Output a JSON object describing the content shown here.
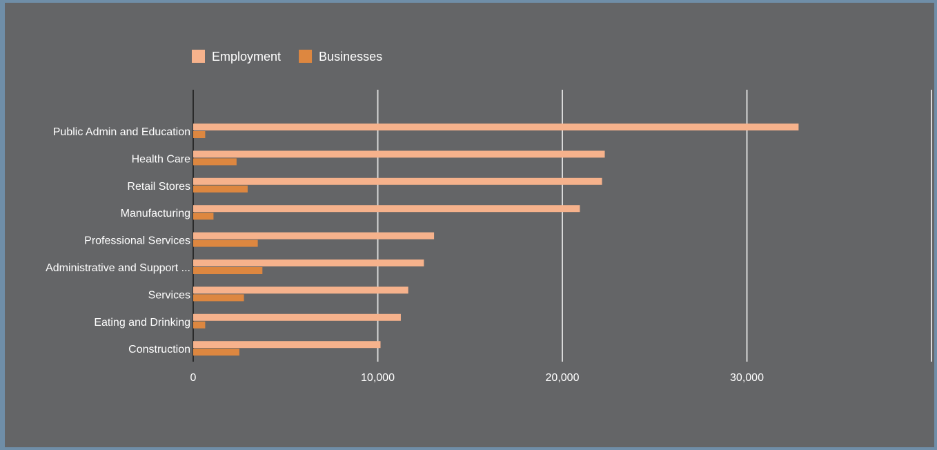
{
  "colors": {
    "background": "#646567",
    "frame": "#6f8ea8",
    "employment": "#f6b28c",
    "businesses": "#dd8740",
    "gridline": "#d9d9d9",
    "baseline": "#2a2a2a",
    "text": "#ffffff"
  },
  "chart_data": {
    "type": "bar",
    "orientation": "horizontal",
    "categories": [
      "Public Admin and Education",
      "Health Care",
      "Retail Stores",
      "Manufacturing",
      "Professional Services",
      "Administrative and Support ...",
      "Services",
      "Eating and Drinking",
      "Construction"
    ],
    "series": [
      {
        "name": "Employment",
        "values": [
          32800,
          22300,
          22150,
          20950,
          13050,
          12500,
          11650,
          11250,
          10150
        ]
      },
      {
        "name": "Businesses",
        "values": [
          650,
          2350,
          2950,
          1100,
          3500,
          3750,
          2750,
          650,
          2500
        ]
      }
    ],
    "xlim": [
      0,
      40000
    ],
    "ticks": [
      0,
      10000,
      20000,
      30000
    ],
    "tick_labels": [
      "0",
      "10,000",
      "20,000",
      "30,000"
    ],
    "grid": true,
    "legend_position": "top",
    "title": "",
    "xlabel": "",
    "ylabel": ""
  }
}
